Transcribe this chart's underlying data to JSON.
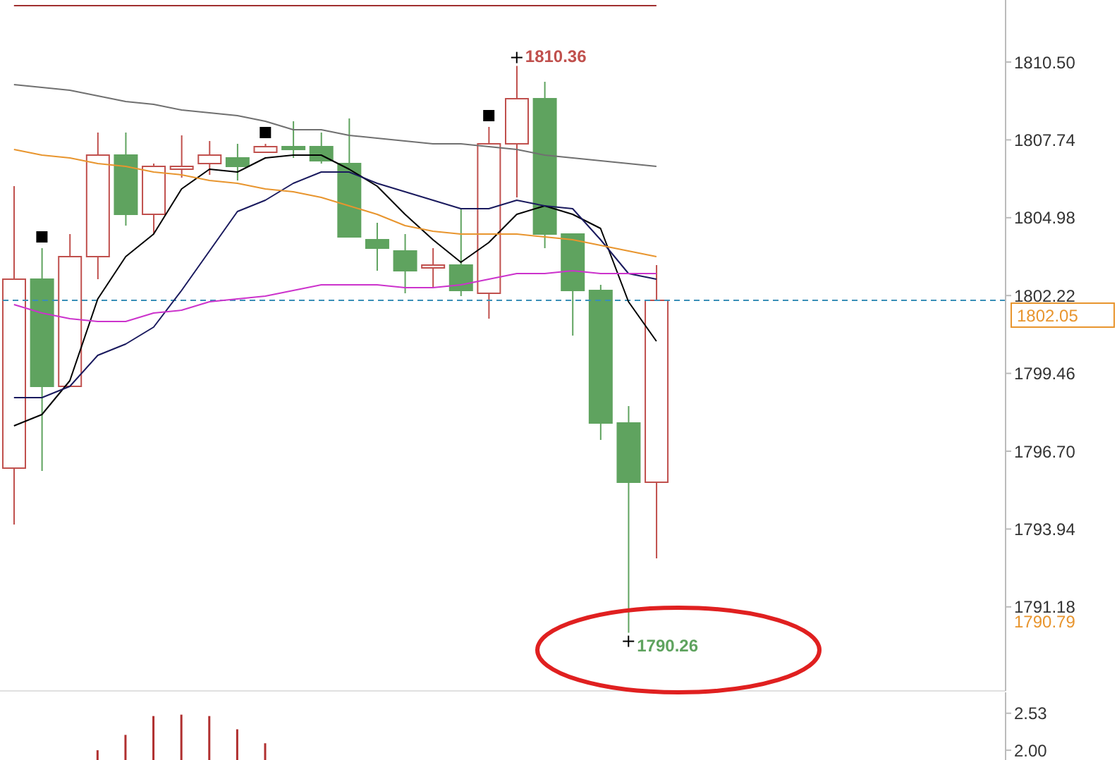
{
  "chart_data": [
    {
      "type": "candlestick",
      "categories": [
        null,
        null,
        null,
        null,
        null,
        null,
        null,
        null,
        null,
        null,
        null,
        null,
        null,
        null,
        null,
        null,
        null,
        null,
        null,
        null,
        null,
        null,
        null,
        null,
        null,
        null,
        null,
        null,
        null,
        null,
        null,
        null,
        null,
        null,
        null,
        null
      ],
      "ohlc": [
        [
          1796.1,
          1806.1,
          1794.1,
          1802.8
        ],
        [
          1802.8,
          1803.9,
          1796.0,
          1799.0
        ],
        [
          1799.0,
          1804.4,
          1799.0,
          1803.6
        ],
        [
          1803.6,
          1808.0,
          1802.8,
          1807.2
        ],
        [
          1807.2,
          1808.0,
          1804.7,
          1805.1
        ],
        [
          1805.1,
          1806.9,
          1804.4,
          1806.8
        ],
        [
          1806.7,
          1807.9,
          1806.4,
          1806.8
        ],
        [
          1806.9,
          1807.7,
          1806.5,
          1807.2
        ],
        [
          1807.1,
          1807.6,
          1806.3,
          1806.8
        ],
        [
          1807.3,
          1807.6,
          1807.3,
          1807.5
        ],
        [
          1807.5,
          1808.4,
          1807.1,
          1807.4
        ],
        [
          1807.5,
          1808.0,
          1806.9,
          1807.0
        ],
        [
          1806.9,
          1808.5,
          1804.3,
          1804.3
        ],
        [
          1804.2,
          1804.8,
          1803.1,
          1803.9
        ],
        [
          1803.8,
          1804.4,
          1802.3,
          1803.1
        ],
        [
          1803.2,
          1803.9,
          1802.5,
          1803.3
        ],
        [
          1803.3,
          1805.3,
          1802.2,
          1802.4
        ],
        [
          1802.3,
          1808.2,
          1801.4,
          1807.6
        ],
        [
          1807.6,
          1810.36,
          1805.7,
          1809.2
        ],
        [
          1809.2,
          1809.8,
          1803.9,
          1804.4
        ],
        [
          1804.4,
          1804.4,
          1800.8,
          1802.4
        ],
        [
          1802.4,
          1802.6,
          1797.1,
          1797.7
        ],
        [
          1797.7,
          1798.3,
          1790.26,
          1795.6
        ],
        [
          1795.6,
          1803.3,
          1792.9,
          1802.05
        ],
        null,
        null,
        null,
        null,
        null,
        null,
        null,
        null,
        null,
        null,
        null,
        null
      ],
      "series": [
        {
          "type": "line",
          "color": "#000000",
          "values": [
            1797.6,
            1798.0,
            1799.2,
            1802.1,
            1803.6,
            1804.4,
            1806.0,
            1806.7,
            1806.6,
            1807.1,
            1807.2,
            1807.2,
            1806.7,
            1806.1,
            1805.1,
            1804.2,
            1803.4,
            1804.1,
            1805.1,
            1805.4,
            1805.1,
            1804.6,
            1802.0,
            1800.6,
            null,
            null,
            null,
            null,
            null,
            null,
            null,
            null,
            null,
            null,
            null,
            null
          ]
        },
        {
          "type": "line",
          "color": "#1a1a5e",
          "values": [
            1798.6,
            1798.6,
            1799.0,
            1800.1,
            1800.5,
            1801.1,
            1802.4,
            1803.8,
            1805.2,
            1805.6,
            1806.2,
            1806.6,
            1806.6,
            1806.2,
            1805.9,
            1805.6,
            1805.3,
            1805.3,
            1805.6,
            1805.4,
            1805.3,
            1804.2,
            1803.0,
            1802.8,
            null,
            null,
            null,
            null,
            null,
            null,
            null,
            null,
            null,
            null,
            null,
            null
          ]
        },
        {
          "type": "line",
          "color": "#e8952e",
          "values": [
            1807.4,
            1807.2,
            1807.1,
            1806.9,
            1806.8,
            1806.6,
            1806.5,
            1806.3,
            1806.2,
            1806.0,
            1805.9,
            1805.7,
            1805.4,
            1805.1,
            1804.7,
            1804.5,
            1804.4,
            1804.4,
            1804.4,
            1804.3,
            1804.2,
            1804.0,
            1803.8,
            1803.6,
            null,
            null,
            null,
            null,
            null,
            null,
            null,
            null,
            null,
            null,
            null,
            null
          ]
        },
        {
          "type": "line",
          "color": "#cc33cc",
          "values": [
            1801.9,
            1801.6,
            1801.4,
            1801.3,
            1801.3,
            1801.6,
            1801.7,
            1802.0,
            1802.1,
            1802.2,
            1802.4,
            1802.6,
            1802.6,
            1802.6,
            1802.5,
            1802.5,
            1802.6,
            1802.8,
            1803.0,
            1803.0,
            1803.1,
            1803.0,
            1803.0,
            1803.0,
            null,
            null,
            null,
            null,
            null,
            null,
            null,
            null,
            null,
            null,
            null,
            null
          ]
        },
        {
          "type": "line",
          "color": "#707070",
          "values": [
            1809.7,
            1809.6,
            1809.5,
            1809.3,
            1809.1,
            1809.0,
            1808.8,
            1808.7,
            1808.6,
            1808.4,
            1808.1,
            1808.1,
            1807.9,
            1807.8,
            1807.7,
            1807.6,
            1807.6,
            1807.5,
            1807.4,
            1807.2,
            1807.1,
            1807.0,
            1806.9,
            1806.8,
            null,
            null,
            null,
            null,
            null,
            null,
            null,
            null,
            null,
            null,
            null,
            null
          ]
        },
        {
          "type": "line",
          "color": "#a03030",
          "values": [
            1812.5,
            1812.5,
            1812.5,
            1812.5,
            1812.5,
            1812.5,
            1812.5,
            1812.5,
            1812.5,
            1812.5,
            1812.5,
            1812.5,
            1812.5,
            1812.5,
            1812.5,
            1812.5,
            1812.5,
            1812.5,
            1812.5,
            1812.5,
            1812.5,
            1812.5,
            1812.5,
            1812.5,
            null,
            null,
            null,
            null,
            null,
            null,
            null,
            null,
            null,
            null,
            null,
            null
          ]
        },
        {
          "type": "scatter",
          "marker": "square",
          "color": "#000000",
          "values": [
            null,
            1804.3,
            null,
            null,
            null,
            null,
            null,
            null,
            null,
            1808.0,
            null,
            null,
            null,
            null,
            null,
            null,
            null,
            1808.6,
            null,
            null,
            null,
            null,
            null,
            null,
            null,
            null,
            null,
            null,
            null,
            null,
            null,
            null,
            null,
            null,
            null,
            null
          ]
        }
      ],
      "ylim": [
        1788.2,
        1812.7
      ],
      "yticks": [
        {
          "value": 1791.18,
          "label": "1791.18"
        },
        {
          "value": 1793.94,
          "label": "1793.94"
        },
        {
          "value": 1796.7,
          "label": "1796.70"
        },
        {
          "value": 1799.46,
          "label": "1799.46"
        },
        {
          "value": 1802.22,
          "label": "1802.22"
        },
        {
          "value": 1804.98,
          "label": "1804.98"
        },
        {
          "value": 1807.74,
          "label": "1807.74"
        },
        {
          "value": 1810.5,
          "label": "1810.50"
        }
      ],
      "ref_lines": [
        {
          "axis": "y",
          "value": 1802.05,
          "label": "1802.05",
          "color": "#3a8fb7",
          "line_style": "dashed"
        }
      ],
      "annotations": [
        "1810.36",
        "1790.26",
        "1790.79"
      ],
      "tick_labels": "y"
    },
    {
      "type": "bar",
      "categories": [
        null,
        null,
        null,
        null,
        null,
        null,
        null,
        null,
        null,
        null,
        null,
        null,
        null,
        null,
        null,
        null,
        null,
        null,
        null,
        null,
        null,
        null,
        null,
        null,
        null,
        null,
        null,
        null,
        null,
        null,
        null,
        null,
        null,
        null,
        null,
        null
      ],
      "values": [
        null,
        null,
        null,
        2.0,
        2.22,
        2.49,
        2.51,
        2.49,
        2.3,
        2.1,
        null,
        null,
        null,
        null,
        null,
        null,
        null,
        null,
        null,
        null,
        null,
        null,
        null,
        null,
        null,
        null,
        null,
        null,
        null,
        null,
        null,
        null,
        null,
        null,
        null,
        null
      ],
      "color": "#b03030",
      "ylim": [
        1.86,
        2.83
      ],
      "yticks": [
        {
          "value": 2.0,
          "label": "2.00"
        },
        2.53
      ],
      "tick_labels": "y"
    }
  ]
}
